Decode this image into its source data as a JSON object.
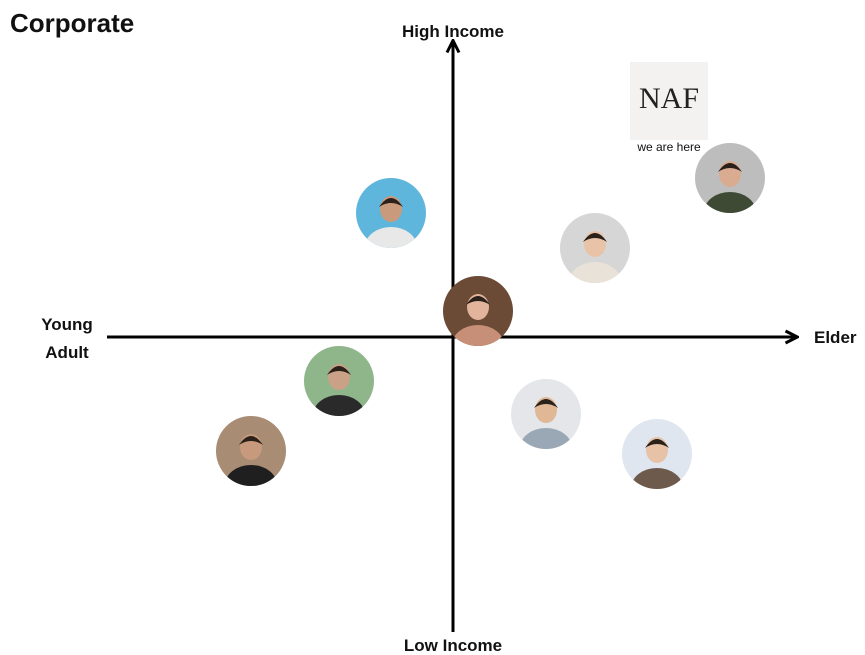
{
  "title": "Corporate",
  "axes": {
    "top": "High Income",
    "bottom": "Low Income",
    "left": [
      "Young",
      "Adult"
    ],
    "right": "Elder"
  },
  "logo": {
    "text": "NAF",
    "caption": "we are here"
  }
}
